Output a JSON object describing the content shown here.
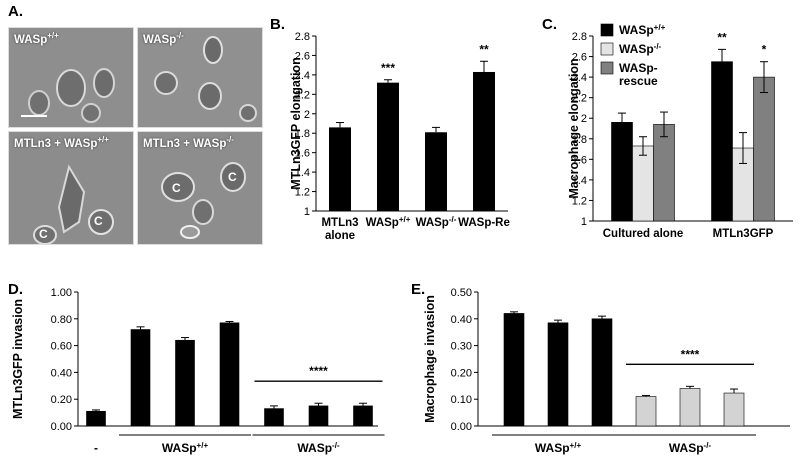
{
  "panel_A": {
    "letter": "A.",
    "images": [
      {
        "label_base": "WASp",
        "label_sup": "+/+",
        "cells_marked": []
      },
      {
        "label_base": "WASp",
        "label_sup": "-/-",
        "cells_marked": []
      },
      {
        "label_base": "MTLn3 + WASp",
        "label_sup": "+/+",
        "cells_marked": [
          "C",
          "C"
        ]
      },
      {
        "label_base": "MTLn3 + WASp",
        "label_sup": "-/-",
        "cells_marked": [
          "C",
          "C"
        ]
      }
    ]
  },
  "chart_data": [
    {
      "panel": "B.",
      "type": "bar",
      "ylabel": "MTLn3GFP elongation",
      "ylim": [
        1,
        2.8
      ],
      "yticks": [
        "1",
        "1.2",
        "1.4",
        "1.6",
        "1.8",
        "2",
        "2.2",
        "2.4",
        "2.6",
        "2.8"
      ],
      "categories": [
        {
          "line1": "MTLn3",
          "line2": "alone",
          "sup": ""
        },
        {
          "line1": "WASp",
          "line2": "",
          "sup": "+/+"
        },
        {
          "line1": "WASp",
          "line2": "",
          "sup": "-/-"
        },
        {
          "line1": "WASp-Re",
          "line2": "",
          "sup": ""
        }
      ],
      "values": [
        1.86,
        2.32,
        1.81,
        2.43
      ],
      "errors": [
        0.05,
        0.03,
        0.05,
        0.11
      ],
      "significance": [
        "",
        "***",
        "",
        "**"
      ],
      "color": "#000000"
    },
    {
      "panel": "C.",
      "type": "bar",
      "ylabel": "Macrophage elongation",
      "ylim": [
        1,
        2.8
      ],
      "yticks": [
        "1",
        "1.2",
        "1.4",
        "1.6",
        "1.8",
        "2",
        "2.2",
        "2.4",
        "2.6",
        "2.8"
      ],
      "categories": [
        "Cultured alone",
        "MTLn3GFP"
      ],
      "series": [
        {
          "name_base": "WASp",
          "name_sup": "+/+",
          "name_line2": "",
          "color": "#000000",
          "values": [
            1.96,
            2.55
          ],
          "errors": [
            0.09,
            0.12
          ]
        },
        {
          "name_base": "WASp",
          "name_sup": "-/-",
          "name_line2": "",
          "color": "#e4e4e4",
          "values": [
            1.73,
            1.71
          ],
          "errors": [
            0.09,
            0.15
          ]
        },
        {
          "name_base": "WASp-",
          "name_sup": "",
          "name_line2": "rescue",
          "color": "#808080",
          "values": [
            1.94,
            2.4
          ],
          "errors": [
            0.12,
            0.15
          ]
        }
      ],
      "significance": [
        [
          "",
          "",
          ""
        ],
        [
          "**",
          "",
          "*"
        ]
      ],
      "legend_position": "top-left"
    },
    {
      "panel": "D.",
      "type": "bar",
      "ylabel": "MTLn3GFP invasion",
      "ylim": [
        0,
        1.0
      ],
      "yticks": [
        "0.00",
        "0.20",
        "0.40",
        "0.60",
        "0.80",
        "1.00"
      ],
      "values": [
        0.11,
        0.72,
        0.64,
        0.77,
        0.13,
        0.15,
        0.15
      ],
      "errors": [
        0.01,
        0.02,
        0.02,
        0.01,
        0.02,
        0.02,
        0.02
      ],
      "colors": [
        "#000000",
        "#000000",
        "#000000",
        "#000000",
        "#000000",
        "#000000",
        "#000000"
      ],
      "group_labels": [
        {
          "base": "-",
          "sup": "",
          "first": 0,
          "last": 0,
          "line": false
        },
        {
          "base": "WASp",
          "sup": "+/+",
          "first": 1,
          "last": 3,
          "line": true
        },
        {
          "base": "WASp",
          "sup": "-/-",
          "first": 4,
          "last": 6,
          "line": true
        }
      ],
      "significance": {
        "text": "****",
        "first": 4,
        "last": 6
      }
    },
    {
      "panel": "E.",
      "type": "bar",
      "ylabel": "Macrophage invasion",
      "ylim": [
        0,
        0.5
      ],
      "yticks": [
        "0.00",
        "0.10",
        "0.20",
        "0.30",
        "0.40",
        "0.50"
      ],
      "values": [
        0.42,
        0.385,
        0.4,
        0.11,
        0.14,
        0.123
      ],
      "errors": [
        0.006,
        0.01,
        0.01,
        0.004,
        0.008,
        0.015
      ],
      "colors": [
        "#000000",
        "#000000",
        "#000000",
        "#d3d3d3",
        "#d3d3d3",
        "#d3d3d3"
      ],
      "group_labels": [
        {
          "base": "WASp",
          "sup": "+/+",
          "first": 0,
          "last": 2,
          "line": true
        },
        {
          "base": "WASp",
          "sup": "-/-",
          "first": 3,
          "last": 5,
          "line": true
        }
      ],
      "significance": {
        "text": "****",
        "first": 3,
        "last": 5
      }
    }
  ]
}
